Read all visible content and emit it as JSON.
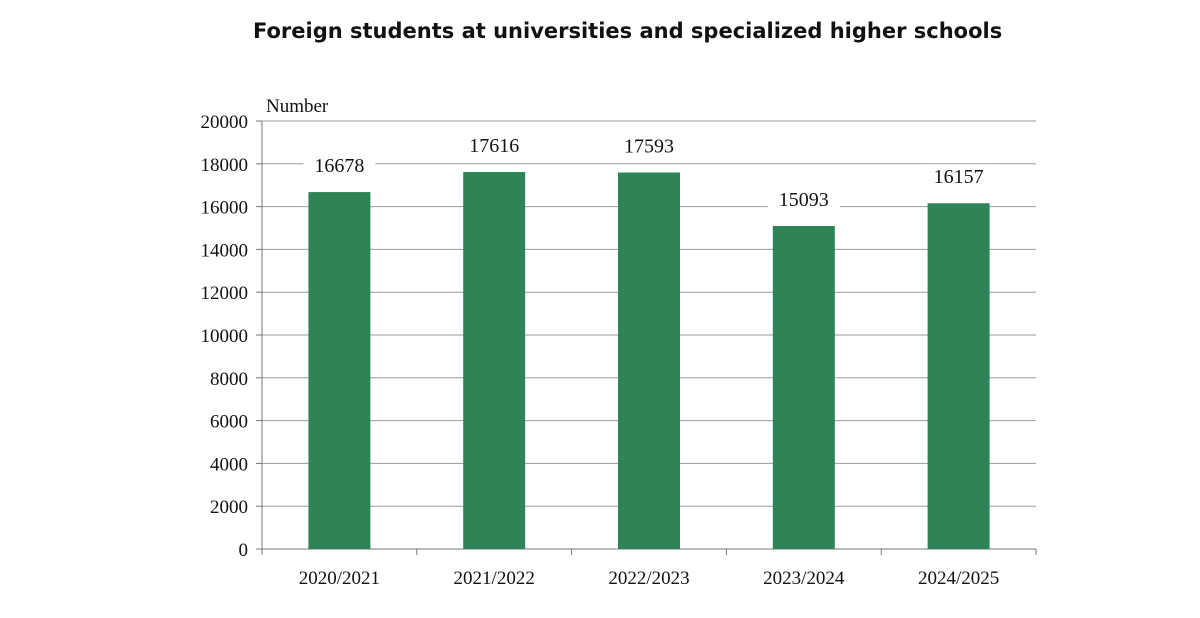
{
  "chart_data": {
    "type": "bar",
    "title": "Foreign students at universities and specialized higher schools",
    "ylabel": "Number",
    "xlabel": "",
    "categories": [
      "2020/2021",
      "2021/2022",
      "2022/2023",
      "2023/2024",
      "2024/2025"
    ],
    "values": [
      16678,
      17616,
      17593,
      15093,
      16157
    ],
    "ylim": [
      0,
      20000
    ],
    "yticks": [
      0,
      2000,
      4000,
      6000,
      8000,
      10000,
      12000,
      14000,
      16000,
      18000,
      20000
    ],
    "grid": true,
    "legend": "none",
    "bar_color": "#2e8457",
    "grid_color": "#9a9a9a"
  }
}
